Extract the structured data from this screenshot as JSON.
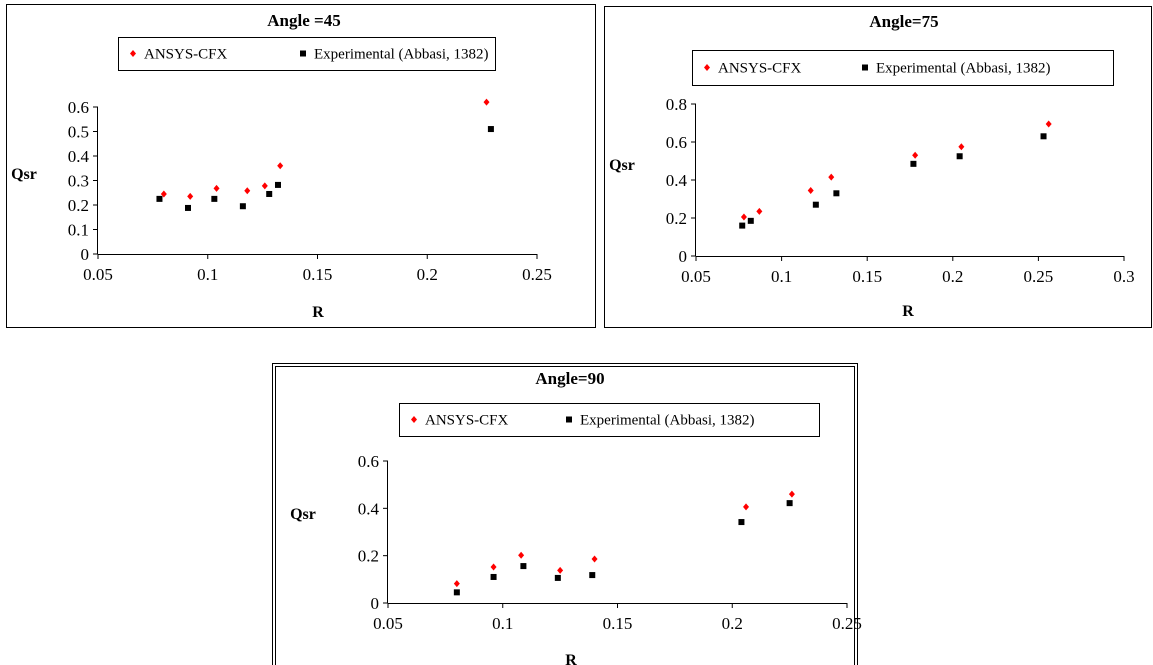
{
  "chart_data": [
    {
      "type": "scatter",
      "title": "Angle =45",
      "xlabel": "R",
      "ylabel": "Qsr",
      "xlim": [
        0.05,
        0.25
      ],
      "ylim": [
        0,
        0.6
      ],
      "xticks": [
        "0.05",
        "0.1",
        "0.15",
        "0.2",
        "0.25"
      ],
      "yticks": [
        "0",
        "0.1",
        "0.2",
        "0.3",
        "0.4",
        "0.5",
        "0.6"
      ],
      "legend_position": "top",
      "grid": false,
      "series": [
        {
          "name": "ANSYS-CFX",
          "color": "#ff0000",
          "marker": "diamond",
          "x": [
            0.08,
            0.092,
            0.104,
            0.118,
            0.126,
            0.133,
            0.227
          ],
          "y": [
            0.245,
            0.235,
            0.268,
            0.258,
            0.278,
            0.36,
            0.62
          ]
        },
        {
          "name": "Experimental (Abbasi, 1382)",
          "color": "#000000",
          "marker": "square",
          "x": [
            0.078,
            0.091,
            0.103,
            0.116,
            0.128,
            0.132,
            0.229
          ],
          "y": [
            0.225,
            0.188,
            0.225,
            0.195,
            0.245,
            0.282,
            0.51
          ]
        }
      ]
    },
    {
      "type": "scatter",
      "title": "Angle=75",
      "xlabel": "R",
      "ylabel": "Qsr",
      "xlim": [
        0.05,
        0.3
      ],
      "ylim": [
        0,
        0.8
      ],
      "xticks": [
        "0.05",
        "0.1",
        "0.15",
        "0.2",
        "0.25",
        "0.3"
      ],
      "yticks": [
        "0",
        "0.2",
        "0.4",
        "0.6",
        "0.8"
      ],
      "legend_position": "top",
      "grid": false,
      "series": [
        {
          "name": "ANSYS-CFX",
          "color": "#ff0000",
          "marker": "diamond",
          "x": [
            0.078,
            0.087,
            0.117,
            0.129,
            0.178,
            0.205,
            0.256
          ],
          "y": [
            0.205,
            0.235,
            0.345,
            0.415,
            0.53,
            0.575,
            0.695
          ]
        },
        {
          "name": "Experimental (Abbasi, 1382)",
          "color": "#000000",
          "marker": "square",
          "x": [
            0.077,
            0.082,
            0.12,
            0.132,
            0.177,
            0.204,
            0.253
          ],
          "y": [
            0.16,
            0.185,
            0.27,
            0.33,
            0.485,
            0.525,
            0.63
          ]
        }
      ]
    },
    {
      "type": "scatter",
      "title": "Angle=90",
      "xlabel": "R",
      "ylabel": "Qsr",
      "xlim": [
        0.05,
        0.25
      ],
      "ylim": [
        0,
        0.6
      ],
      "xticks": [
        "0.05",
        "0.1",
        "0.15",
        "0.2",
        "0.25"
      ],
      "yticks": [
        "0",
        "0.2",
        "0.4",
        "0.6"
      ],
      "legend_position": "top",
      "grid": false,
      "series": [
        {
          "name": "ANSYS-CFX",
          "color": "#ff0000",
          "marker": "diamond",
          "x": [
            0.08,
            0.096,
            0.108,
            0.125,
            0.14,
            0.206,
            0.226
          ],
          "y": [
            0.082,
            0.152,
            0.202,
            0.138,
            0.186,
            0.406,
            0.46
          ]
        },
        {
          "name": "Experimental (Abbasi, 1382)",
          "color": "#000000",
          "marker": "square",
          "x": [
            0.08,
            0.096,
            0.109,
            0.124,
            0.139,
            0.204,
            0.225
          ],
          "y": [
            0.045,
            0.11,
            0.156,
            0.106,
            0.118,
            0.342,
            0.422
          ]
        }
      ]
    }
  ]
}
